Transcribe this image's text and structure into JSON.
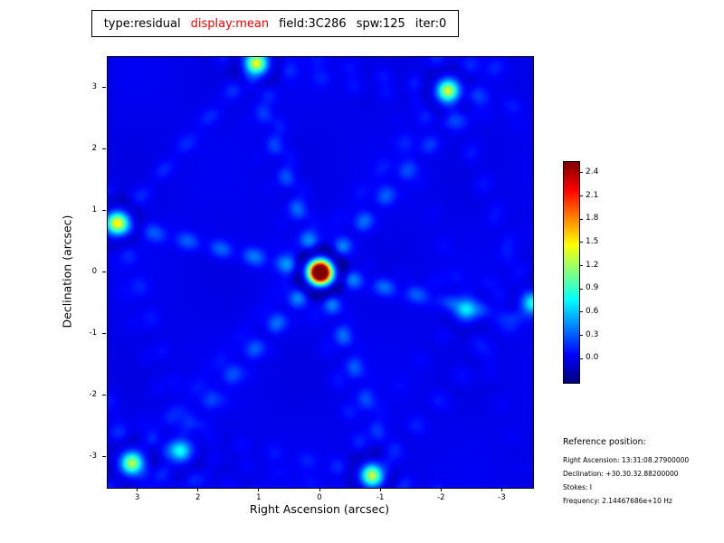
{
  "title": {
    "segments": [
      {
        "text": "type:residual",
        "color": "#000000"
      },
      {
        "text": "display:mean",
        "color": "#ff0000"
      },
      {
        "text": "field:3C286",
        "color": "#000000"
      },
      {
        "text": "spw:125",
        "color": "#000000"
      },
      {
        "text": "iter:0",
        "color": "#000000"
      }
    ]
  },
  "axes": {
    "x_label": "Right Ascension (arcsec)",
    "y_label": "Declination (arcsec)",
    "x_ticks": [
      3,
      2,
      1,
      0,
      -1,
      -2,
      -3
    ],
    "y_ticks": [
      3,
      2,
      1,
      0,
      -1,
      -2,
      -3
    ],
    "x_range": [
      3.5,
      -3.5
    ],
    "y_range": [
      -3.5,
      3.5
    ]
  },
  "colorbar": {
    "ticks": [
      2.4,
      2.1,
      1.8,
      1.5,
      1.2,
      0.9,
      0.6,
      0.3,
      0.0
    ],
    "vmin": -0.3,
    "vmax": 2.55,
    "colormap": "jet"
  },
  "reference": {
    "heading": "Reference position:",
    "lines": [
      "Right Ascension: 13:31:08.27900000",
      "Declination: +30.30.32.88200000",
      "Stokes: I",
      "Frequency: 2.14467686e+10 Hz"
    ]
  },
  "chart_data": {
    "type": "heatmap",
    "title": "type:residual display:mean field:3C286 spw:125 iter:0",
    "xlabel": "Right Ascension (arcsec)",
    "ylabel": "Declination (arcsec)",
    "x_range_arcsec": [
      3.5,
      -3.5
    ],
    "y_range_arcsec": [
      -3.5,
      3.5
    ],
    "colormap": "jet",
    "value_range": [
      -0.3,
      2.55
    ],
    "colorbar_ticks": [
      2.4,
      2.1,
      1.8,
      1.5,
      1.2,
      0.9,
      0.6,
      0.3,
      0.0
    ],
    "peak": {
      "ra_arcsec": 0.0,
      "dec_arcsec": 0.0,
      "value": 2.6
    },
    "background_level": 0.0,
    "sources": [
      {
        "ra": 0.0,
        "dec": 0.0,
        "amp": 2.6
      },
      {
        "ra": 1.05,
        "dec": 3.4,
        "amp": 0.9
      },
      {
        "ra": -2.1,
        "dec": 2.95,
        "amp": 0.85
      },
      {
        "ra": 3.35,
        "dec": 0.8,
        "amp": 0.9
      },
      {
        "ra": 3.1,
        "dec": -3.1,
        "amp": 0.8
      },
      {
        "ra": -0.85,
        "dec": -3.3,
        "amp": 0.85
      },
      {
        "ra": 2.3,
        "dec": -2.9,
        "amp": 0.5
      },
      {
        "ra": -2.4,
        "dec": -0.6,
        "amp": 0.45
      },
      {
        "ra": -3.5,
        "dec": -0.5,
        "amp": 0.5
      }
    ],
    "psf": {
      "core_sigma_arcsec": 0.12,
      "arm_axes_deg": [
        49,
        110,
        167
      ],
      "arm_blob_spacing_arcsec": 0.55,
      "arm_width_sigma_arcsec": 0.1,
      "arm_strength": 0.2,
      "arm_decay_arcsec": 3.2,
      "dark_ring_radius_arcsec": 0.38,
      "dark_ring_sigma_arcsec": 0.08,
      "dark_ring_strength": 0.12
    }
  }
}
